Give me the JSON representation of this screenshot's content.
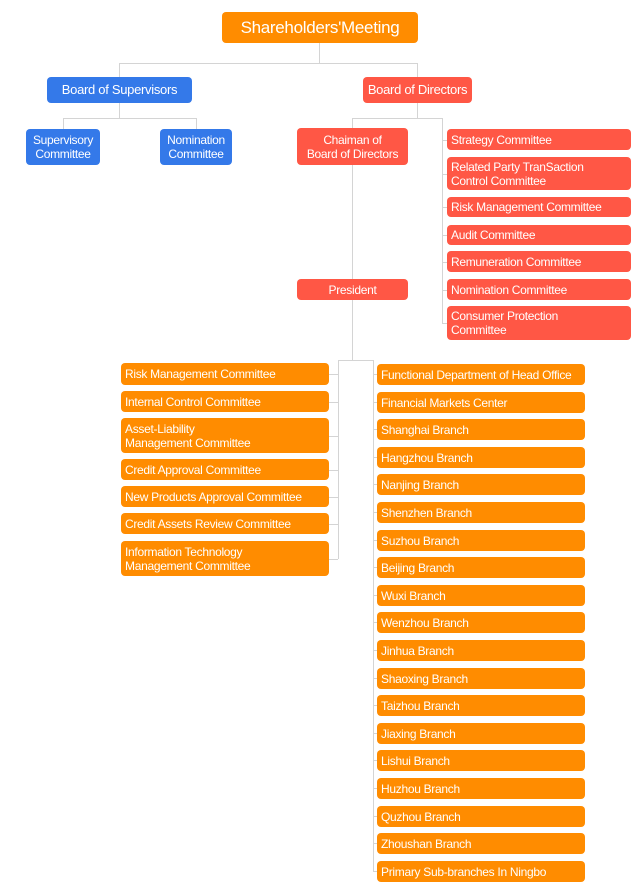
{
  "colors": {
    "orange": "#FF8C00",
    "red": "#FF5745",
    "blue": "#3479E9",
    "connector": "#D4D4D4"
  },
  "root": "Shareholders'Meeting",
  "board_of_supervisors": {
    "label": "Board of Supervisors",
    "children": [
      "Supervisory\nCommittee",
      "Nomination\nCommittee"
    ]
  },
  "board_of_directors": {
    "label": "Board of Directors",
    "chairman": "Chaiman of\nBoard of Directors",
    "president": "President",
    "committees": [
      "Strategy Committee",
      "Related Party TranSaction\nControl Committee",
      "Risk Management Committee",
      "Audit Committee",
      "Remuneration Committee",
      "Nomination Committee",
      "Consumer Protection\nCommittee"
    ]
  },
  "president_committees": [
    "Risk Management Committee",
    "Internal Control Committee",
    "Asset-Liability\nManagement Committee",
    "Credit  Approval Committee",
    "New Products Approval Committee",
    "Credit  Assets Review Committee",
    "Information Technology\nManagement Committee"
  ],
  "departments": [
    "Functional Department of Head Office",
    "Financial Markets Center",
    "Shanghai Branch",
    "Hangzhou Branch",
    "Nanjing Branch",
    "Shenzhen Branch",
    "Suzhou Branch",
    "Beijing Branch",
    "Wuxi Branch",
    "Wenzhou Branch",
    "Jinhua Branch",
    "Shaoxing Branch",
    "Taizhou Branch",
    "Jiaxing Branch",
    "Lishui Branch",
    "Huzhou Branch",
    "Quzhou Branch",
    "Zhoushan Branch",
    "Primary Sub-branches In Ningbo"
  ]
}
